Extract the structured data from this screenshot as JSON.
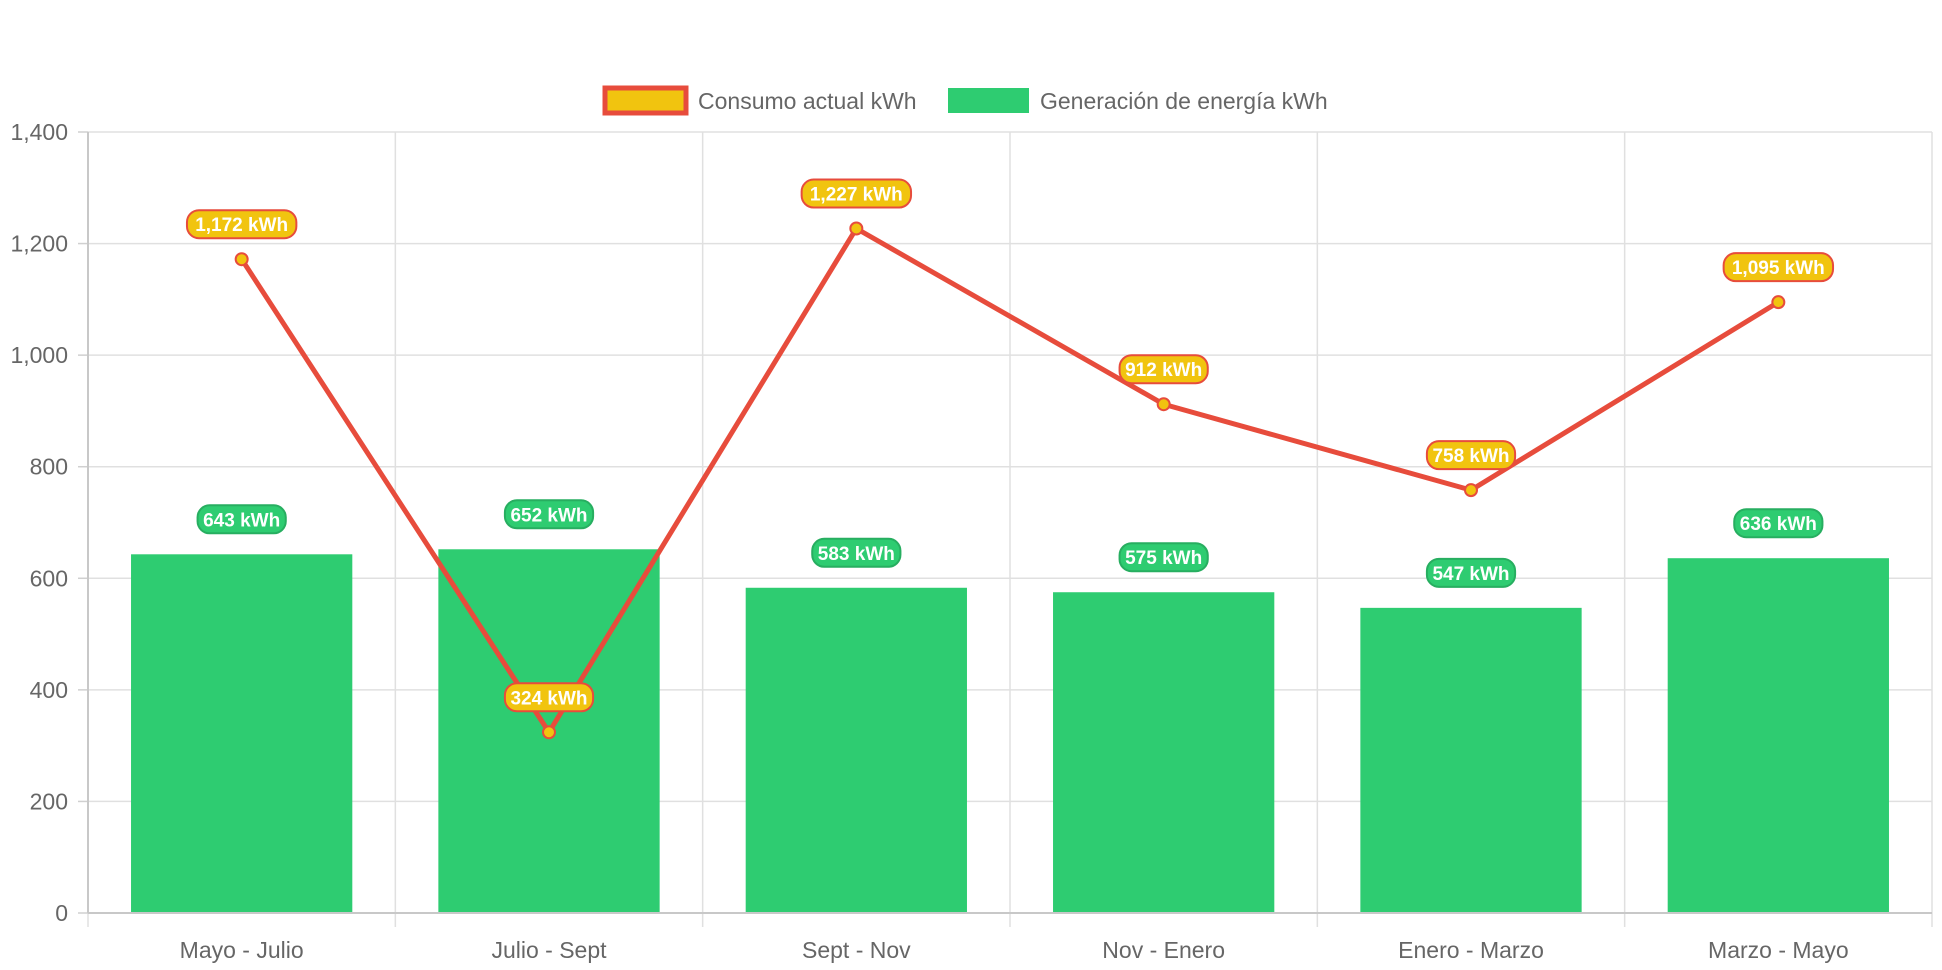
{
  "chart_data": {
    "type": "bar",
    "categories": [
      "Mayo - Julio",
      "Julio - Sept",
      "Sept - Nov",
      "Nov - Enero",
      "Enero - Marzo",
      "Marzo - Mayo"
    ],
    "series": [
      {
        "name": "Consumo actual kWh",
        "type": "line",
        "values": [
          1172,
          324,
          1227,
          912,
          758,
          1095
        ],
        "labels": [
          "1,172 kWh",
          "324 kWh",
          "1,227 kWh",
          "912 kWh",
          "758 kWh",
          "1,095 kWh"
        ],
        "color": "#e74c3c",
        "fill": "#f1c40f"
      },
      {
        "name": "Generación de energía kWh",
        "type": "bar",
        "values": [
          643,
          652,
          583,
          575,
          547,
          636
        ],
        "labels": [
          "643 kWh",
          "652 kWh",
          "583 kWh",
          "575 kWh",
          "547 kWh",
          "636 kWh"
        ],
        "color": "#2ecc71"
      }
    ],
    "yticks": [
      "0",
      "200",
      "400",
      "600",
      "800",
      "1,000",
      "1,200",
      "1,400"
    ],
    "ylim": [
      0,
      1400
    ],
    "legend": "top",
    "grid": true
  }
}
